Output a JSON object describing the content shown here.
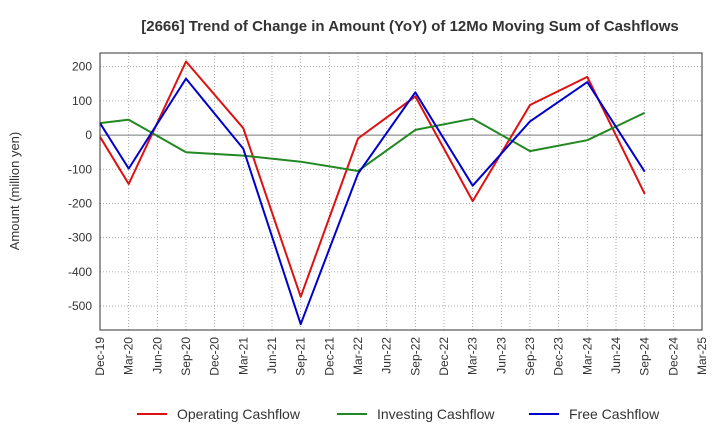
{
  "chart_data": {
    "type": "line",
    "title": "[2666]  Trend of Change in Amount (YoY) of 12Mo Moving Sum of Cashflows",
    "ylabel": "Amount (million yen)",
    "xlabel": "",
    "ylim": [
      -570,
      240
    ],
    "yticks": [
      200,
      100,
      0,
      -100,
      -200,
      -300,
      -400,
      -500
    ],
    "categories": [
      "Dec-19",
      "Mar-20",
      "Jun-20",
      "Sep-20",
      "Dec-20",
      "Mar-21",
      "Jun-21",
      "Sep-21",
      "Dec-21",
      "Mar-22",
      "Jun-22",
      "Sep-22",
      "Dec-22",
      "Mar-23",
      "Jun-23",
      "Sep-23",
      "Dec-23",
      "Mar-24",
      "Jun-24",
      "Sep-24",
      "Dec-24",
      "Mar-25"
    ],
    "series": [
      {
        "name": "Operating Cashflow",
        "color": "#dd1111",
        "values": [
          -5,
          -143,
          null,
          215,
          null,
          20,
          null,
          -473,
          null,
          -10,
          null,
          113,
          null,
          -193,
          null,
          88,
          null,
          170,
          null,
          -172,
          null,
          null
        ]
      },
      {
        "name": "Investing Cashflow",
        "color": "#228822",
        "values": [
          35,
          45,
          null,
          -50,
          null,
          -60,
          null,
          -78,
          null,
          -105,
          null,
          15,
          null,
          48,
          null,
          -47,
          null,
          -15,
          null,
          65,
          null,
          null
        ]
      },
      {
        "name": "Free Cashflow",
        "color": "#0000cc",
        "values": [
          35,
          -98,
          null,
          165,
          null,
          -40,
          null,
          -553,
          null,
          -113,
          null,
          125,
          null,
          -148,
          null,
          40,
          null,
          155,
          null,
          -107,
          null,
          null
        ]
      }
    ]
  }
}
